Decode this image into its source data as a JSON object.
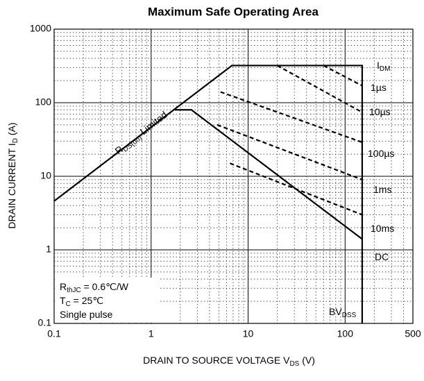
{
  "chart_data": {
    "type": "line",
    "title": "Maximum Safe Operating Area",
    "x_label": {
      "text": "DRAIN TO SOURCE VOLTAGE   V",
      "sub": "DS",
      "after": "  (V)"
    },
    "y_label": {
      "text": "DRAIN CURRENT   I",
      "sub": "D",
      "after": "  (A)"
    },
    "log_x": true,
    "log_y": true,
    "grid": true,
    "minor_grid": true,
    "xlim": [
      0.1,
      500
    ],
    "ylim": [
      0.1,
      1000
    ],
    "xticks": [
      0.1,
      1,
      10,
      100,
      500
    ],
    "yticks": [
      0.1,
      1,
      10,
      100,
      1000
    ],
    "series": [
      {
        "color": "#000000",
        "style": "solid",
        "x": [
          0.1,
          6.8,
          150,
          150
        ],
        "values": [
          4.6,
          320,
          320,
          0.1
        ]
      },
      {
        "color": "#000000",
        "style": "solid",
        "x": [
          1.75,
          2.6,
          150
        ],
        "values": [
          80,
          80,
          1.4
        ]
      },
      {
        "color": "#000000",
        "style": "dashed",
        "x": [
          60,
          150
        ],
        "values": [
          320,
          170
        ]
      },
      {
        "color": "#000000",
        "style": "dashed",
        "x": [
          20,
          150
        ],
        "values": [
          320,
          74
        ]
      },
      {
        "color": "#000000",
        "style": "dashed",
        "x": [
          5.2,
          150
        ],
        "values": [
          140,
          29
        ]
      },
      {
        "color": "#000000",
        "style": "dashed",
        "x": [
          4.8,
          150
        ],
        "values": [
          50,
          9
        ]
      },
      {
        "color": "#000000",
        "style": "dashed",
        "x": [
          6.5,
          150
        ],
        "values": [
          15,
          3
        ]
      }
    ],
    "annotations": [
      {
        "text": "I",
        "sub": "DM"
      },
      {
        "text": "1µs"
      },
      {
        "text": "10µs"
      },
      {
        "text": "100µs"
      },
      {
        "text": "1ms"
      },
      {
        "text": "10ms"
      },
      {
        "text": "DC"
      },
      {
        "text": "BV",
        "sub": "DSS"
      },
      {
        "text": "R",
        "sub": "DS(on)",
        "after": " Limited"
      }
    ],
    "notes": [
      {
        "text": "R",
        "sub": "thJC",
        "after": " = 0.6℃/W"
      },
      {
        "text": "T",
        "sub": "C",
        "after": " = 25℃"
      },
      {
        "text": "Single pulse"
      }
    ]
  }
}
